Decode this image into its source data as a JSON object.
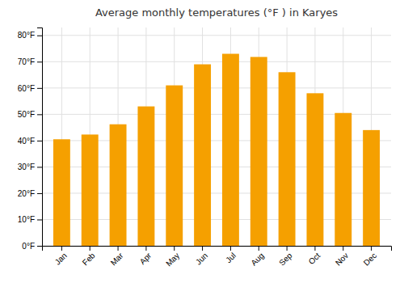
{
  "chart_data": {
    "type": "bar",
    "title": "Average monthly temperatures (°F ) in Karyes",
    "categories": [
      "Jan",
      "Feb",
      "Mar",
      "Apr",
      "May",
      "Jun",
      "Jul",
      "Aug",
      "Sep",
      "Oct",
      "Nov",
      "Dec"
    ],
    "values": [
      40.5,
      42.3,
      46.2,
      53.0,
      61.0,
      69.0,
      73.0,
      71.8,
      66.0,
      58.0,
      50.5,
      44.0
    ],
    "color": "#F5A000",
    "ylim": [
      0,
      83
    ],
    "yticks": [
      {
        "value": 0,
        "label": "0°F"
      },
      {
        "value": 10,
        "label": "10°F"
      },
      {
        "value": 20,
        "label": "20°F"
      },
      {
        "value": 30,
        "label": "30°F"
      },
      {
        "value": 40,
        "label": "40°F"
      },
      {
        "value": 50,
        "label": "50°F"
      },
      {
        "value": 60,
        "label": "60°F"
      },
      {
        "value": 70,
        "label": "70°F"
      },
      {
        "value": 80,
        "label": "80°F"
      }
    ],
    "grid": true
  }
}
